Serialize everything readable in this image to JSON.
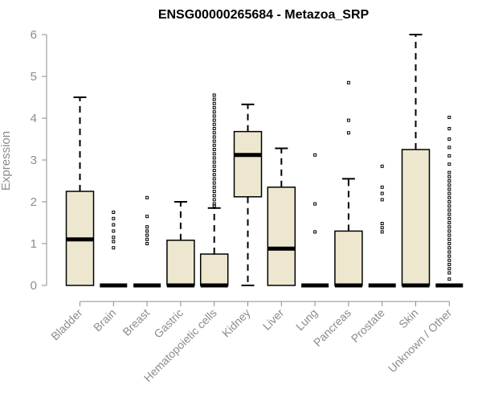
{
  "chart_data": {
    "type": "boxplot",
    "title": "ENSG00000265684 - Metazoa_SRP",
    "xlabel": "",
    "ylabel": "Expression",
    "ylim": [
      0,
      6
    ],
    "yticks": [
      0,
      1,
      2,
      3,
      4,
      5,
      6
    ],
    "box_fill": "#ede7cf",
    "categories": [
      "Bladder",
      "Brain",
      "Breast",
      "Gastric",
      "Hematopoietic cells",
      "Kidney",
      "Liver",
      "Lung",
      "Pancreas",
      "Prostate",
      "Skin",
      "Unknown / Other"
    ],
    "boxes": [
      {
        "name": "Bladder",
        "whisker_low": 0,
        "q1": 0,
        "median": 1.1,
        "q3": 2.25,
        "whisker_high": 4.5,
        "outliers": []
      },
      {
        "name": "Brain",
        "whisker_low": 0,
        "q1": 0,
        "median": 0,
        "q3": 0,
        "whisker_high": 0,
        "outliers": [
          0.9,
          1.05,
          1.15,
          1.3,
          1.45,
          1.6,
          1.75
        ]
      },
      {
        "name": "Breast",
        "whisker_low": 0,
        "q1": 0,
        "median": 0,
        "q3": 0,
        "whisker_high": 0,
        "outliers": [
          1.0,
          1.1,
          1.2,
          1.3,
          1.4,
          1.65,
          2.1
        ]
      },
      {
        "name": "Gastric",
        "whisker_low": 0,
        "q1": 0,
        "median": 0,
        "q3": 1.08,
        "whisker_high": 2.0,
        "outliers": []
      },
      {
        "name": "Hematopoietic cells",
        "whisker_low": 0,
        "q1": 0,
        "median": 0,
        "q3": 0.75,
        "whisker_high": 1.85,
        "outliers": [
          1.9,
          1.95,
          2.05,
          2.15,
          2.25,
          2.35,
          2.45,
          2.55,
          2.65,
          2.75,
          2.85,
          2.95,
          3.05,
          3.15,
          3.25,
          3.35,
          3.45,
          3.55,
          3.65,
          3.75,
          3.85,
          3.95,
          4.05,
          4.15,
          4.25,
          4.35,
          4.45,
          4.55
        ]
      },
      {
        "name": "Kidney",
        "whisker_low": 0,
        "q1": 2.12,
        "median": 3.12,
        "q3": 3.68,
        "whisker_high": 4.33,
        "outliers": []
      },
      {
        "name": "Liver",
        "whisker_low": 0,
        "q1": 0,
        "median": 0.88,
        "q3": 2.35,
        "whisker_high": 3.28,
        "outliers": []
      },
      {
        "name": "Lung",
        "whisker_low": 0,
        "q1": 0,
        "median": 0,
        "q3": 0,
        "whisker_high": 0,
        "outliers": [
          1.28,
          1.95,
          3.12
        ]
      },
      {
        "name": "Pancreas",
        "whisker_low": 0,
        "q1": 0,
        "median": 0,
        "q3": 1.3,
        "whisker_high": 2.55,
        "outliers": [
          3.65,
          3.95,
          4.85
        ]
      },
      {
        "name": "Prostate",
        "whisker_low": 0,
        "q1": 0,
        "median": 0,
        "q3": 0,
        "whisker_high": 0,
        "outliers": [
          1.28,
          1.38,
          1.48,
          2.05,
          2.2,
          2.35,
          2.85
        ]
      },
      {
        "name": "Skin",
        "whisker_low": 0,
        "q1": 0,
        "median": 0,
        "q3": 3.25,
        "whisker_high": 6.0,
        "outliers": []
      },
      {
        "name": "Unknown / Other",
        "whisker_low": 0,
        "q1": 0,
        "median": 0,
        "q3": 0,
        "whisker_high": 0,
        "outliers": [
          0.15,
          0.3,
          0.4,
          0.5,
          0.6,
          0.7,
          0.8,
          0.9,
          1.0,
          1.1,
          1.2,
          1.3,
          1.4,
          1.5,
          1.6,
          1.7,
          1.8,
          1.9,
          2.0,
          2.1,
          2.2,
          2.3,
          2.4,
          2.5,
          2.6,
          2.7,
          2.9,
          3.1,
          3.3,
          3.5,
          3.75,
          4.02
        ]
      }
    ]
  }
}
